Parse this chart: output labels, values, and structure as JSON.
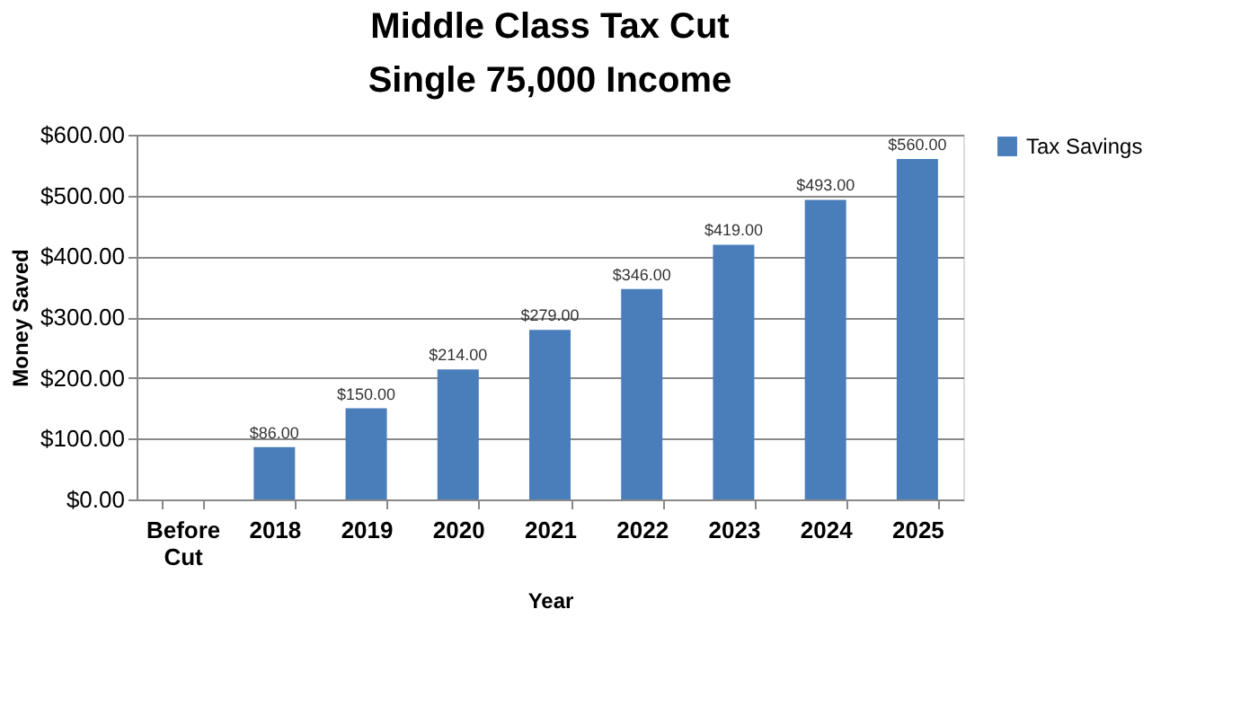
{
  "chart_data": {
    "type": "bar",
    "title": "Middle Class Tax Cut",
    "subtitle": "Single 75,000 Income",
    "xlabel": "Year",
    "ylabel": "Money Saved",
    "categories": [
      "Before Cut",
      "2018",
      "2019",
      "2020",
      "2021",
      "2022",
      "2023",
      "2024",
      "2025"
    ],
    "series": [
      {
        "name": "Tax Savings",
        "color": "#4a7ebb",
        "values": [
          0,
          86,
          150,
          214,
          279,
          346,
          419,
          493,
          560
        ]
      }
    ],
    "value_labels": [
      null,
      "$86.00",
      "$150.00",
      "$214.00",
      "$279.00",
      "$346.00",
      "$419.00",
      "$493.00",
      "$560.00"
    ],
    "ylim": [
      0,
      600
    ],
    "yticks": [
      {
        "value": 0,
        "label": "$0.00"
      },
      {
        "value": 100,
        "label": "$100.00"
      },
      {
        "value": 200,
        "label": "$200.00"
      },
      {
        "value": 300,
        "label": "$300.00"
      },
      {
        "value": 400,
        "label": "$400.00"
      },
      {
        "value": 500,
        "label": "$500.00"
      },
      {
        "value": 600,
        "label": "$600.00"
      }
    ],
    "grid": "y",
    "legend": "right"
  }
}
